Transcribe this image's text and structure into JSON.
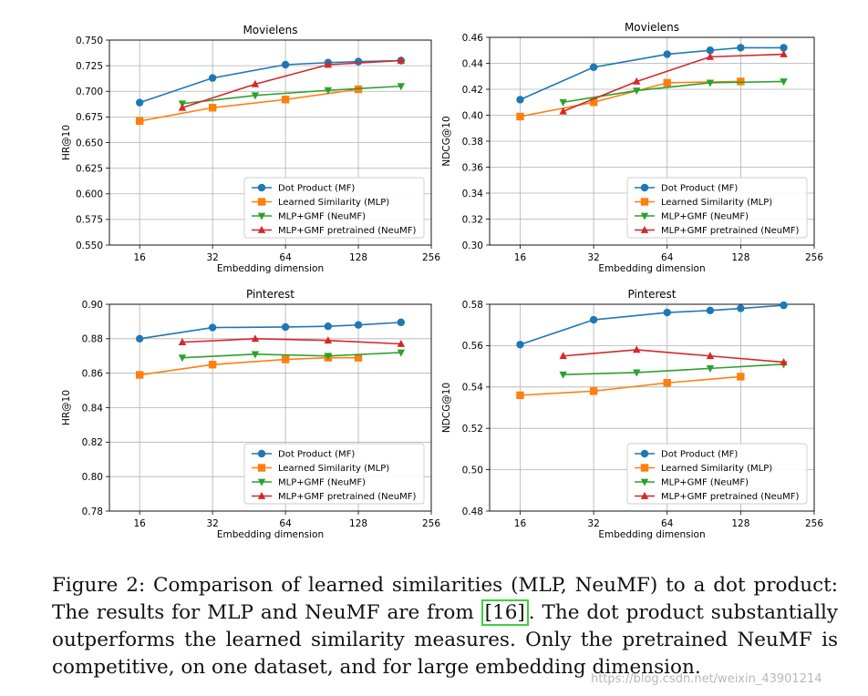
{
  "chart_data": [
    {
      "type": "line",
      "title": "Movielens",
      "xlabel": "Embedding dimension",
      "ylabel": "HR@10",
      "xscale": "log2",
      "xlim": [
        12,
        256
      ],
      "xticks": [
        16,
        32,
        64,
        128,
        256
      ],
      "ylim": [
        0.55,
        0.75
      ],
      "yticks": [
        "0.550",
        "0.575",
        "0.600",
        "0.625",
        "0.650",
        "0.675",
        "0.700",
        "0.725",
        "0.750"
      ],
      "grid": true,
      "legend": "lower-right",
      "series": [
        {
          "name": "Dot Product (MF)",
          "color": "#1f77b4",
          "marker": "circle",
          "x": [
            16,
            32,
            64,
            96,
            128,
            192
          ],
          "y": [
            0.689,
            0.713,
            0.726,
            0.728,
            0.729,
            0.73
          ]
        },
        {
          "name": "Learned Similarity (MLP)",
          "color": "#ff7f0e",
          "marker": "square",
          "x": [
            16,
            32,
            64,
            128
          ],
          "y": [
            0.671,
            0.684,
            0.692,
            0.702
          ]
        },
        {
          "name": "MLP+GMF (NeuMF)",
          "color": "#2ca02c",
          "marker": "triangle-down",
          "x": [
            24,
            48,
            96,
            192
          ],
          "y": [
            0.688,
            0.696,
            0.701,
            0.705
          ]
        },
        {
          "name": "MLP+GMF pretrained (NeuMF)",
          "color": "#d62728",
          "marker": "triangle-up",
          "x": [
            24,
            48,
            96,
            192
          ],
          "y": [
            0.684,
            0.707,
            0.726,
            0.73
          ]
        }
      ]
    },
    {
      "type": "line",
      "title": "Movielens",
      "xlabel": "Embedding dimension",
      "ylabel": "NDCG@10",
      "xscale": "log2",
      "xlim": [
        12,
        256
      ],
      "xticks": [
        16,
        32,
        64,
        128,
        256
      ],
      "ylim": [
        0.3,
        0.46
      ],
      "yticks": [
        "0.30",
        "0.32",
        "0.34",
        "0.36",
        "0.38",
        "0.40",
        "0.42",
        "0.44",
        "0.46"
      ],
      "grid": true,
      "legend": "lower-right",
      "series": [
        {
          "name": "Dot Product (MF)",
          "color": "#1f77b4",
          "marker": "circle",
          "x": [
            16,
            32,
            64,
            96,
            128,
            192
          ],
          "y": [
            0.412,
            0.437,
            0.447,
            0.45,
            0.452,
            0.452
          ]
        },
        {
          "name": "Learned Similarity (MLP)",
          "color": "#ff7f0e",
          "marker": "square",
          "x": [
            16,
            32,
            64,
            128
          ],
          "y": [
            0.399,
            0.41,
            0.425,
            0.426
          ]
        },
        {
          "name": "MLP+GMF (NeuMF)",
          "color": "#2ca02c",
          "marker": "triangle-down",
          "x": [
            24,
            48,
            96,
            192
          ],
          "y": [
            0.41,
            0.419,
            0.425,
            0.426
          ]
        },
        {
          "name": "MLP+GMF pretrained (NeuMF)",
          "color": "#d62728",
          "marker": "triangle-up",
          "x": [
            24,
            48,
            96,
            192
          ],
          "y": [
            0.403,
            0.426,
            0.445,
            0.447
          ]
        }
      ]
    },
    {
      "type": "line",
      "title": "Pinterest",
      "xlabel": "Embedding dimension",
      "ylabel": "HR@10",
      "xscale": "log2",
      "xlim": [
        12,
        256
      ],
      "xticks": [
        16,
        32,
        64,
        128,
        256
      ],
      "ylim": [
        0.78,
        0.9
      ],
      "yticks": [
        "0.78",
        "0.80",
        "0.82",
        "0.84",
        "0.86",
        "0.88",
        "0.90"
      ],
      "grid": true,
      "legend": "lower-right",
      "series": [
        {
          "name": "Dot Product (MF)",
          "color": "#1f77b4",
          "marker": "circle",
          "x": [
            16,
            32,
            64,
            96,
            128,
            192
          ],
          "y": [
            0.88,
            0.8865,
            0.8868,
            0.8872,
            0.888,
            0.8895
          ]
        },
        {
          "name": "Learned Similarity (MLP)",
          "color": "#ff7f0e",
          "marker": "square",
          "x": [
            16,
            32,
            64,
            96,
            128
          ],
          "y": [
            0.859,
            0.865,
            0.868,
            0.869,
            0.869
          ]
        },
        {
          "name": "MLP+GMF (NeuMF)",
          "color": "#2ca02c",
          "marker": "triangle-down",
          "x": [
            24,
            48,
            96,
            192
          ],
          "y": [
            0.869,
            0.871,
            0.87,
            0.872
          ]
        },
        {
          "name": "MLP+GMF pretrained (NeuMF)",
          "color": "#d62728",
          "marker": "triangle-up",
          "x": [
            24,
            48,
            96,
            192
          ],
          "y": [
            0.878,
            0.88,
            0.879,
            0.877
          ]
        }
      ]
    },
    {
      "type": "line",
      "title": "Pinterest",
      "xlabel": "Embedding dimension",
      "ylabel": "NDCG@10",
      "xscale": "log2",
      "xlim": [
        12,
        256
      ],
      "xticks": [
        16,
        32,
        64,
        128,
        256
      ],
      "ylim": [
        0.48,
        0.58
      ],
      "yticks": [
        "0.48",
        "0.50",
        "0.52",
        "0.54",
        "0.56",
        "0.58"
      ],
      "grid": true,
      "legend": "lower-right",
      "series": [
        {
          "name": "Dot Product (MF)",
          "color": "#1f77b4",
          "marker": "circle",
          "x": [
            16,
            32,
            64,
            96,
            128,
            192
          ],
          "y": [
            0.5605,
            0.5725,
            0.576,
            0.577,
            0.578,
            0.5795
          ]
        },
        {
          "name": "Learned Similarity (MLP)",
          "color": "#ff7f0e",
          "marker": "square",
          "x": [
            16,
            32,
            64,
            128
          ],
          "y": [
            0.536,
            0.538,
            0.542,
            0.545
          ]
        },
        {
          "name": "MLP+GMF (NeuMF)",
          "color": "#2ca02c",
          "marker": "triangle-down",
          "x": [
            24,
            48,
            96,
            192
          ],
          "y": [
            0.546,
            0.547,
            0.549,
            0.551
          ]
        },
        {
          "name": "MLP+GMF pretrained (NeuMF)",
          "color": "#d62728",
          "marker": "triangle-up",
          "x": [
            24,
            48,
            96,
            192
          ],
          "y": [
            0.555,
            0.558,
            0.555,
            0.552
          ]
        }
      ]
    }
  ],
  "caption": {
    "prefix": "Figure 2: Comparison of learned similarities (MLP, NeuMF) to a dot product: The results for MLP and NeuMF are from ",
    "ref": "[16]",
    "suffix": ". The dot product substantially outperforms the learned similarity measures. Only the pretrained NeuMF is competitive, on one dataset, and for large embedding dimension."
  },
  "watermark": "https://blog.csdn.net/weixin_43901214"
}
